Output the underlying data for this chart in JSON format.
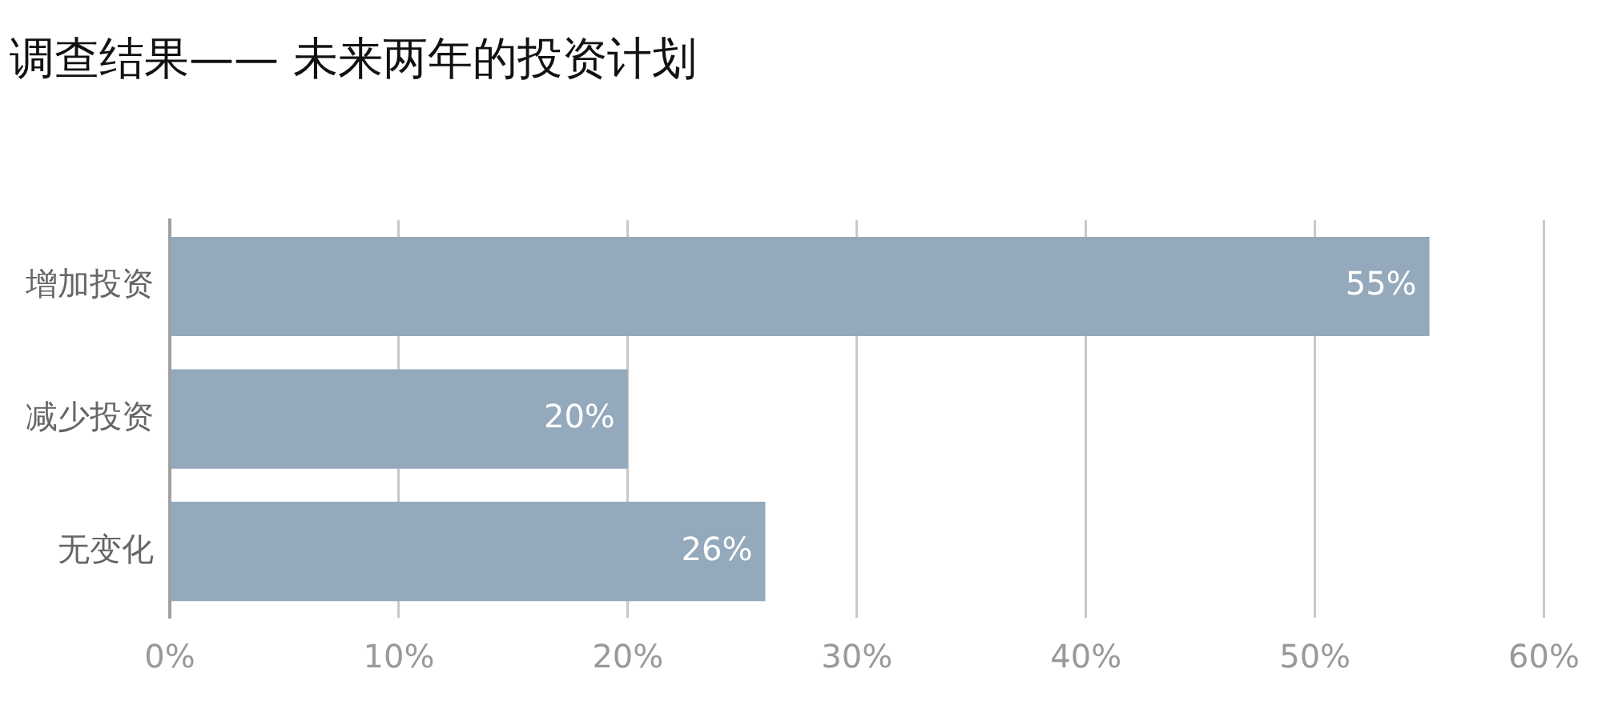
{
  "chart_data": {
    "type": "bar",
    "orientation": "horizontal",
    "title": "调查结果—— 未来两年的投资计划",
    "categories": [
      "增加投资",
      "减少投资",
      "无变化"
    ],
    "values": [
      55,
      20,
      26
    ],
    "color": "#94a9bb",
    "value_labels": [
      "55%",
      "20%",
      "26%"
    ],
    "xlim": [
      0,
      60
    ],
    "xticks": [
      {
        "value": 0,
        "label": "0%"
      },
      {
        "value": 10,
        "label": "10%"
      },
      {
        "value": 20,
        "label": "20%"
      },
      {
        "value": 30,
        "label": "30%"
      },
      {
        "value": 40,
        "label": "40%"
      },
      {
        "value": 50,
        "label": "50%"
      },
      {
        "value": 60,
        "label": "60%"
      }
    ],
    "grid": "x",
    "legend": false
  }
}
